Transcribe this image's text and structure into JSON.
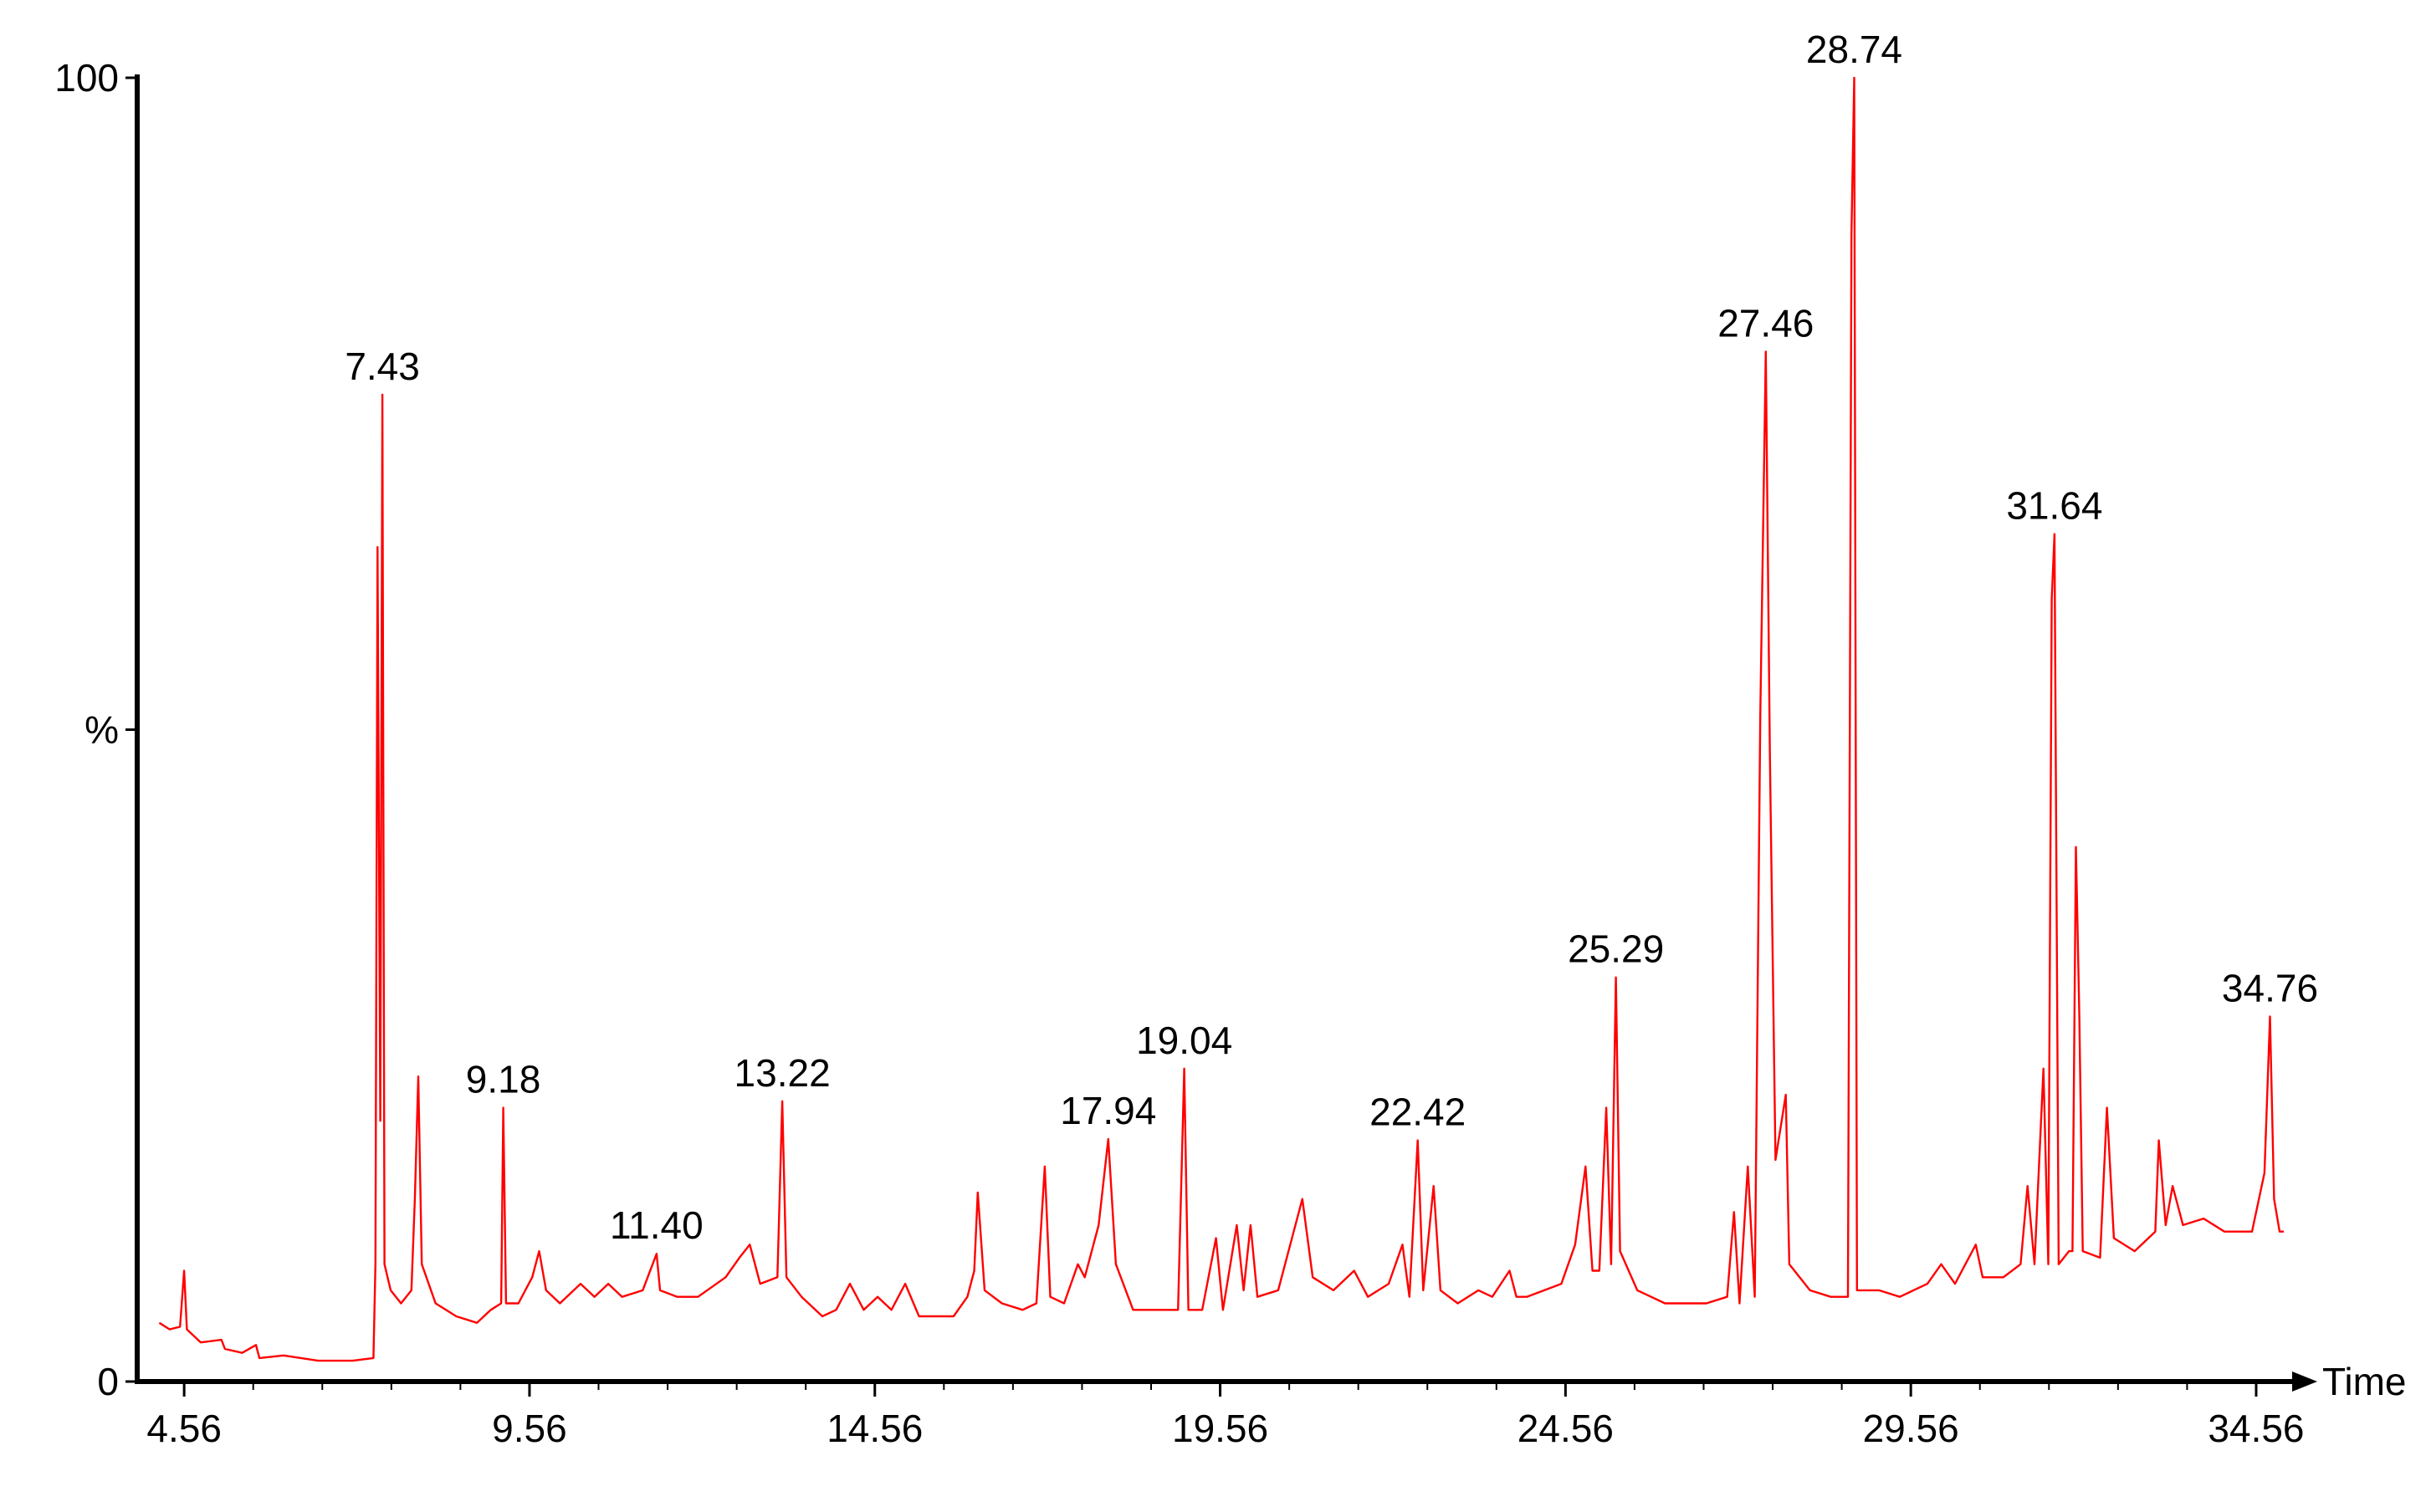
{
  "chart_data": {
    "type": "line",
    "xlabel": "Time",
    "ylabel": "%",
    "color": "#ff0000",
    "xlim": [
      3.88,
      34.96
    ],
    "ylim": [
      0,
      100
    ],
    "xticks": [
      4.56,
      9.56,
      14.56,
      19.56,
      24.56,
      29.56,
      34.56
    ],
    "yticks": [
      0,
      100
    ],
    "peaks": [
      {
        "value": 7.43,
        "label": "7.43"
      },
      {
        "value": 9.18,
        "label": "9.18"
      },
      {
        "value": 11.4,
        "label": "11.40"
      },
      {
        "value": 13.22,
        "label": "13.22"
      },
      {
        "value": 17.94,
        "label": "17.94"
      },
      {
        "value": 19.04,
        "label": "19.04"
      },
      {
        "value": 22.42,
        "label": "22.42"
      },
      {
        "value": 25.29,
        "label": "25.29"
      },
      {
        "value": 27.46,
        "label": "27.46"
      },
      {
        "value": 28.74,
        "label": "28.74"
      },
      {
        "value": 31.64,
        "label": "31.64"
      },
      {
        "value": 34.76,
        "label": "34.76"
      }
    ],
    "x": [
      4.2,
      4.35,
      4.5,
      4.56,
      4.6,
      4.8,
      5.1,
      5.15,
      5.4,
      5.6,
      5.65,
      6.0,
      6.5,
      7.0,
      7.3,
      7.33,
      7.36,
      7.4,
      7.43,
      7.46,
      7.55,
      7.7,
      7.85,
      7.9,
      7.95,
      8.0,
      8.2,
      8.5,
      8.8,
      9.0,
      9.15,
      9.18,
      9.22,
      9.4,
      9.6,
      9.7,
      9.8,
      10.0,
      10.3,
      10.5,
      10.7,
      10.9,
      11.2,
      11.4,
      11.45,
      11.7,
      12.0,
      12.4,
      12.6,
      12.75,
      12.9,
      13.15,
      13.22,
      13.28,
      13.5,
      13.8,
      14.0,
      14.2,
      14.4,
      14.6,
      14.8,
      15.0,
      15.2,
      15.5,
      15.7,
      15.9,
      16.0,
      16.05,
      16.15,
      16.4,
      16.7,
      16.9,
      17.02,
      17.1,
      17.3,
      17.5,
      17.6,
      17.8,
      17.94,
      18.05,
      18.3,
      18.6,
      18.95,
      19.04,
      19.1,
      19.3,
      19.5,
      19.6,
      19.8,
      19.9,
      20.0,
      20.1,
      20.4,
      20.6,
      20.75,
      20.9,
      21.2,
      21.5,
      21.7,
      22.0,
      22.2,
      22.3,
      22.42,
      22.5,
      22.65,
      22.75,
      23.0,
      23.3,
      23.5,
      23.75,
      23.85,
      24.0,
      24.5,
      24.7,
      24.85,
      24.95,
      25.05,
      25.15,
      25.22,
      25.29,
      25.35,
      25.6,
      26.0,
      26.3,
      26.6,
      26.9,
      27.0,
      27.08,
      27.2,
      27.3,
      27.38,
      27.46,
      27.52,
      27.6,
      27.75,
      27.8,
      28.1,
      28.4,
      28.65,
      28.7,
      28.74,
      28.78,
      29.1,
      29.4,
      29.8,
      30.0,
      30.2,
      30.5,
      30.6,
      30.9,
      31.15,
      31.25,
      31.35,
      31.48,
      31.55,
      31.6,
      31.64,
      31.7,
      31.85,
      31.9,
      31.95,
      32.0,
      32.05,
      32.3,
      32.4,
      32.5,
      32.8,
      33.1,
      33.15,
      33.25,
      33.35,
      33.5,
      33.8,
      34.1,
      34.5,
      34.68,
      34.76,
      34.82,
      34.9,
      34.96
    ],
    "values": [
      4.5,
      4.0,
      4.2,
      8.5,
      4.0,
      3.0,
      3.2,
      2.5,
      2.2,
      2.8,
      1.8,
      2.0,
      1.6,
      1.6,
      1.8,
      9,
      64,
      20,
      75.7,
      9,
      7,
      6,
      7,
      14,
      23.4,
      9,
      6,
      5,
      4.5,
      5.5,
      6,
      21,
      6,
      6,
      8,
      10,
      7,
      6,
      7.5,
      6.5,
      7.5,
      6.5,
      7,
      9.8,
      7,
      6.5,
      6.5,
      8,
      9.5,
      10.5,
      7.5,
      8,
      21.5,
      8,
      6.5,
      5,
      5.5,
      7.5,
      5.5,
      6.5,
      5.5,
      7.5,
      5,
      5,
      5,
      6.5,
      8.5,
      14.5,
      7,
      6,
      5.5,
      6,
      16.5,
      6.5,
      6,
      9,
      8,
      12,
      18.6,
      9,
      5.5,
      5.5,
      5.5,
      24,
      5.5,
      5.5,
      11,
      5.5,
      12,
      7,
      12,
      6.5,
      7,
      11,
      14,
      8,
      7,
      8.5,
      6.5,
      7.5,
      10.5,
      6.5,
      18.5,
      7,
      15,
      7,
      6,
      7,
      6.5,
      8.5,
      6.5,
      6.5,
      7.5,
      10.5,
      16.5,
      8.5,
      8.5,
      21,
      9,
      31,
      10,
      7,
      6,
      6,
      6,
      6.5,
      13,
      6,
      16.5,
      6.5,
      51,
      79,
      48,
      17,
      22,
      9,
      7,
      6.5,
      6.5,
      88,
      100,
      7,
      7,
      6.5,
      7.5,
      9,
      7.5,
      10.5,
      8,
      8,
      9,
      15,
      9,
      24,
      9,
      60,
      65,
      9,
      10,
      10,
      41,
      28,
      10,
      9.5,
      21,
      11,
      10,
      11.5,
      18.5,
      12,
      15,
      12,
      12.5,
      11.5,
      11.5,
      16,
      28,
      14,
      11.5,
      11.5
    ]
  }
}
